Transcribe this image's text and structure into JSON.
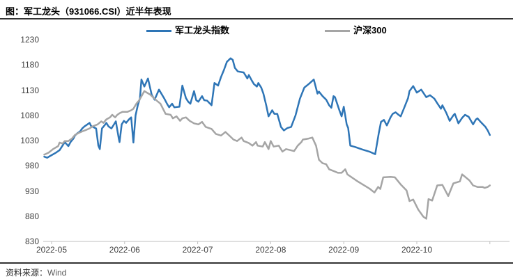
{
  "header": {
    "title": "图：军工龙头（931066.CSI）近半年表现"
  },
  "legend": [
    {
      "label": "军工龙头指数",
      "color": "#2E75B6"
    },
    {
      "label": "沪深300",
      "color": "#A5A5A5"
    }
  ],
  "footer": {
    "source_label": "资料来源：",
    "source_value": "Wind"
  },
  "colors": {
    "series_blue": "#2E75B6",
    "series_gray": "#A5A5A5",
    "axis_line": "#BFBFBF",
    "rule": "#333333",
    "tick_text": "#3F3F3F"
  },
  "chart_data": {
    "type": "line",
    "title": "军工龙头（931066.CSI）近半年表现",
    "xlabel": "",
    "ylabel": "",
    "ylim": [
      830,
      1230
    ],
    "y_ticks": [
      1230,
      1180,
      1130,
      1080,
      1030,
      980,
      930,
      880,
      830
    ],
    "x_tick_labels": [
      "2022-05",
      "2022-06",
      "2022-07",
      "2022-08",
      "2022-09",
      "2022-10"
    ],
    "x_unit": "month (5 = 2022-05-01, 11 = 2022-11-01)",
    "xlim": [
      4.85,
      11.28
    ],
    "grid": false,
    "legend_position": "top",
    "series": [
      {
        "name": "军工龙头指数",
        "color": "#2E75B6",
        "points": [
          [
            4.9,
            998
          ],
          [
            4.94,
            996
          ],
          [
            5.0,
            1001
          ],
          [
            5.06,
            1006
          ],
          [
            5.11,
            1011
          ],
          [
            5.15,
            1020
          ],
          [
            5.18,
            1027
          ],
          [
            5.23,
            1019
          ],
          [
            5.26,
            1027
          ],
          [
            5.3,
            1034
          ],
          [
            5.32,
            1040
          ],
          [
            5.35,
            1044
          ],
          [
            5.39,
            1048
          ],
          [
            5.42,
            1054
          ],
          [
            5.45,
            1058
          ],
          [
            5.49,
            1062
          ],
          [
            5.52,
            1065
          ],
          [
            5.54,
            1059
          ],
          [
            5.58,
            1056
          ],
          [
            5.61,
            1054
          ],
          [
            5.64,
            1020
          ],
          [
            5.66,
            1013
          ],
          [
            5.69,
            1054
          ],
          [
            5.73,
            1061
          ],
          [
            5.75,
            1065
          ],
          [
            5.78,
            1058
          ],
          [
            5.82,
            1054
          ],
          [
            5.85,
            1061
          ],
          [
            5.88,
            1068
          ],
          [
            5.92,
            1034
          ],
          [
            5.93,
            1027
          ],
          [
            5.96,
            1062
          ],
          [
            5.99,
            1069
          ],
          [
            6.02,
            1065
          ],
          [
            6.06,
            1072
          ],
          [
            6.09,
            1076
          ],
          [
            6.12,
            1026
          ],
          [
            6.15,
            1080
          ],
          [
            6.18,
            1100
          ],
          [
            6.21,
            1114
          ],
          [
            6.23,
            1151
          ],
          [
            6.27,
            1137
          ],
          [
            6.32,
            1153
          ],
          [
            6.37,
            1121
          ],
          [
            6.41,
            1111
          ],
          [
            6.47,
            1131
          ],
          [
            6.54,
            1114
          ],
          [
            6.58,
            1103
          ],
          [
            6.61,
            1096
          ],
          [
            6.65,
            1103
          ],
          [
            6.68,
            1096
          ],
          [
            6.75,
            1097
          ],
          [
            6.79,
            1139
          ],
          [
            6.84,
            1114
          ],
          [
            6.87,
            1107
          ],
          [
            6.9,
            1103
          ],
          [
            6.95,
            1128
          ],
          [
            6.98,
            1110
          ],
          [
            7.01,
            1107
          ],
          [
            7.06,
            1118
          ],
          [
            7.09,
            1110
          ],
          [
            7.13,
            1109
          ],
          [
            7.19,
            1100
          ],
          [
            7.23,
            1144
          ],
          [
            7.28,
            1139
          ],
          [
            7.32,
            1156
          ],
          [
            7.36,
            1170
          ],
          [
            7.4,
            1186
          ],
          [
            7.45,
            1193
          ],
          [
            7.48,
            1190
          ],
          [
            7.51,
            1174
          ],
          [
            7.55,
            1167
          ],
          [
            7.63,
            1165
          ],
          [
            7.68,
            1153
          ],
          [
            7.7,
            1160
          ],
          [
            7.74,
            1149
          ],
          [
            7.77,
            1142
          ],
          [
            7.81,
            1137
          ],
          [
            7.83,
            1144
          ],
          [
            7.87,
            1135
          ],
          [
            7.9,
            1123
          ],
          [
            7.94,
            1099
          ],
          [
            7.97,
            1078
          ],
          [
            8.02,
            1090
          ],
          [
            8.05,
            1083
          ],
          [
            8.09,
            1083
          ],
          [
            8.14,
            1057
          ],
          [
            8.18,
            1050
          ],
          [
            8.23,
            1055
          ],
          [
            8.28,
            1057
          ],
          [
            8.34,
            1080
          ],
          [
            8.4,
            1113
          ],
          [
            8.46,
            1135
          ],
          [
            8.52,
            1142
          ],
          [
            8.59,
            1151
          ],
          [
            8.64,
            1123
          ],
          [
            8.66,
            1127
          ],
          [
            8.71,
            1118
          ],
          [
            8.76,
            1111
          ],
          [
            8.8,
            1100
          ],
          [
            8.83,
            1095
          ],
          [
            8.86,
            1118
          ],
          [
            8.88,
            1116
          ],
          [
            8.94,
            1090
          ],
          [
            8.97,
            1078
          ],
          [
            9.0,
            1097
          ],
          [
            9.04,
            1062
          ],
          [
            9.06,
            1055
          ],
          [
            9.09,
            1020
          ],
          [
            9.16,
            1017
          ],
          [
            9.26,
            1012
          ],
          [
            9.35,
            1008
          ],
          [
            9.43,
            1003
          ],
          [
            9.48,
            1045
          ],
          [
            9.51,
            1067
          ],
          [
            9.55,
            1071
          ],
          [
            9.59,
            1060
          ],
          [
            9.64,
            1076
          ],
          [
            9.67,
            1083
          ],
          [
            9.71,
            1086
          ],
          [
            9.75,
            1081
          ],
          [
            9.78,
            1078
          ],
          [
            9.83,
            1096
          ],
          [
            9.88,
            1114
          ],
          [
            9.9,
            1128
          ],
          [
            9.95,
            1138
          ],
          [
            10.0,
            1125
          ],
          [
            10.06,
            1131
          ],
          [
            10.13,
            1116
          ],
          [
            10.18,
            1120
          ],
          [
            10.24,
            1113
          ],
          [
            10.28,
            1104
          ],
          [
            10.33,
            1093
          ],
          [
            10.35,
            1100
          ],
          [
            10.4,
            1086
          ],
          [
            10.45,
            1069
          ],
          [
            10.5,
            1080
          ],
          [
            10.52,
            1083
          ],
          [
            10.57,
            1064
          ],
          [
            10.62,
            1075
          ],
          [
            10.66,
            1081
          ],
          [
            10.71,
            1077
          ],
          [
            10.77,
            1062
          ],
          [
            10.81,
            1072
          ],
          [
            10.83,
            1074
          ],
          [
            10.88,
            1066
          ],
          [
            10.94,
            1057
          ],
          [
            10.97,
            1050
          ],
          [
            11.0,
            1041
          ]
        ]
      },
      {
        "name": "沪深300",
        "color": "#A5A5A5",
        "points": [
          [
            4.9,
            1002
          ],
          [
            4.96,
            1006
          ],
          [
            5.02,
            1013
          ],
          [
            5.09,
            1019
          ],
          [
            5.11,
            1026
          ],
          [
            5.15,
            1024
          ],
          [
            5.18,
            1029
          ],
          [
            5.23,
            1029
          ],
          [
            5.28,
            1034
          ],
          [
            5.32,
            1041
          ],
          [
            5.37,
            1045
          ],
          [
            5.42,
            1048
          ],
          [
            5.47,
            1051
          ],
          [
            5.52,
            1054
          ],
          [
            5.56,
            1058
          ],
          [
            5.63,
            1062
          ],
          [
            5.68,
            1068
          ],
          [
            5.71,
            1065
          ],
          [
            5.75,
            1072
          ],
          [
            5.8,
            1076
          ],
          [
            5.83,
            1081
          ],
          [
            5.87,
            1076
          ],
          [
            5.9,
            1081
          ],
          [
            5.93,
            1084
          ],
          [
            5.97,
            1087
          ],
          [
            6.04,
            1087
          ],
          [
            6.09,
            1090
          ],
          [
            6.12,
            1093
          ],
          [
            6.16,
            1103
          ],
          [
            6.2,
            1110
          ],
          [
            6.27,
            1128
          ],
          [
            6.35,
            1121
          ],
          [
            6.44,
            1109
          ],
          [
            6.49,
            1103
          ],
          [
            6.56,
            1083
          ],
          [
            6.63,
            1081
          ],
          [
            6.66,
            1074
          ],
          [
            6.71,
            1078
          ],
          [
            6.76,
            1069
          ],
          [
            6.79,
            1074
          ],
          [
            6.84,
            1076
          ],
          [
            6.89,
            1069
          ],
          [
            6.95,
            1064
          ],
          [
            7.01,
            1062
          ],
          [
            7.06,
            1067
          ],
          [
            7.11,
            1057
          ],
          [
            7.19,
            1053
          ],
          [
            7.25,
            1043
          ],
          [
            7.32,
            1040
          ],
          [
            7.38,
            1047
          ],
          [
            7.44,
            1039
          ],
          [
            7.49,
            1032
          ],
          [
            7.54,
            1029
          ],
          [
            7.6,
            1036
          ],
          [
            7.63,
            1029
          ],
          [
            7.7,
            1025
          ],
          [
            7.75,
            1020
          ],
          [
            7.8,
            1027
          ],
          [
            7.82,
            1020
          ],
          [
            7.89,
            1018
          ],
          [
            7.92,
            1027
          ],
          [
            7.97,
            1013
          ],
          [
            8.0,
            1029
          ],
          [
            8.04,
            1018
          ],
          [
            8.11,
            1020
          ],
          [
            8.16,
            1008
          ],
          [
            8.21,
            1013
          ],
          [
            8.27,
            1011
          ],
          [
            8.32,
            1009
          ],
          [
            8.37,
            1020
          ],
          [
            8.42,
            1027
          ],
          [
            8.44,
            1032
          ],
          [
            8.52,
            1034
          ],
          [
            8.57,
            1036
          ],
          [
            8.62,
            1020
          ],
          [
            8.66,
            992
          ],
          [
            8.71,
            985
          ],
          [
            8.76,
            983
          ],
          [
            8.8,
            973
          ],
          [
            8.87,
            969
          ],
          [
            8.92,
            966
          ],
          [
            8.97,
            966
          ],
          [
            9.02,
            973
          ],
          [
            9.05,
            963
          ],
          [
            9.13,
            955
          ],
          [
            9.19,
            949
          ],
          [
            9.27,
            942
          ],
          [
            9.35,
            935
          ],
          [
            9.42,
            927
          ],
          [
            9.47,
            938
          ],
          [
            9.5,
            934
          ],
          [
            9.54,
            957
          ],
          [
            9.64,
            958
          ],
          [
            9.7,
            957
          ],
          [
            9.78,
            943
          ],
          [
            9.86,
            931
          ],
          [
            9.9,
            910
          ],
          [
            9.95,
            913
          ],
          [
            10.02,
            893
          ],
          [
            10.09,
            879
          ],
          [
            10.13,
            875
          ],
          [
            10.16,
            914
          ],
          [
            10.21,
            911
          ],
          [
            10.28,
            941
          ],
          [
            10.35,
            942
          ],
          [
            10.43,
            920
          ],
          [
            10.5,
            945
          ],
          [
            10.59,
            949
          ],
          [
            10.62,
            963
          ],
          [
            10.72,
            951
          ],
          [
            10.77,
            941
          ],
          [
            10.83,
            938
          ],
          [
            10.9,
            938
          ],
          [
            10.93,
            936
          ],
          [
            10.97,
            938
          ],
          [
            11.0,
            941
          ]
        ]
      }
    ]
  }
}
